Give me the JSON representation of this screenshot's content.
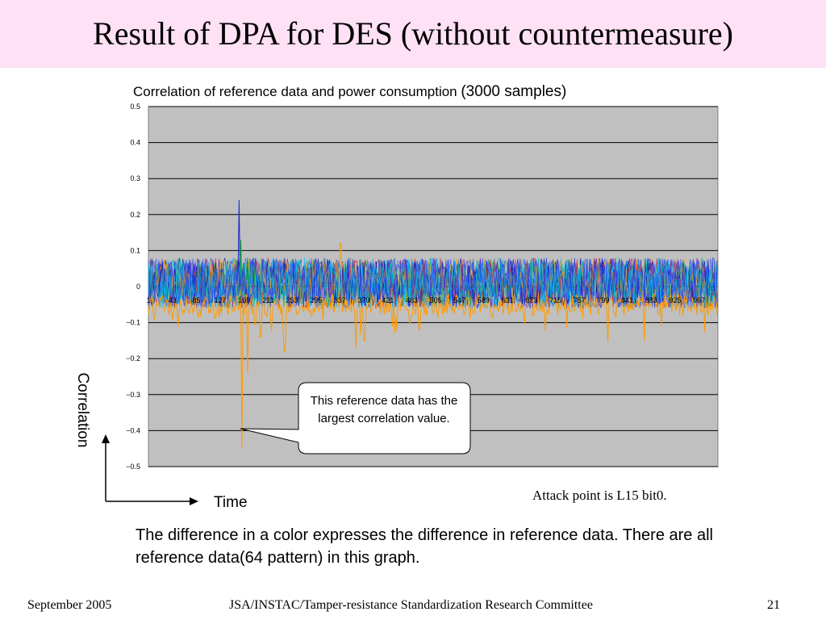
{
  "slide": {
    "title": "Result of DPA for DES (without countermeasure)",
    "chart_title_main": "Correlation of reference data and power consumption ",
    "chart_title_samples": "(3000 samples)",
    "y_axis_label": "Correlation",
    "x_axis_label": "Time",
    "callout": "This reference data has the largest correlation value.",
    "attack_point": "Attack point is L15 bit0.",
    "description": "The difference in a color expresses the difference in reference data. There are all reference data(64 pattern) in this graph.",
    "footer_left": "September 2005",
    "footer_center": "JSA/INSTAC/Tamper-resistance Standardization Research Committee",
    "footer_right": "21",
    "title_bg": "#ffe1f5",
    "plot_bg": "#c0c0c0"
  },
  "chart_data": {
    "type": "line",
    "title": "Correlation of reference data and power consumption (3000 samples)",
    "xlabel": "Time",
    "ylabel": "Correlation",
    "ylim": [
      -0.5,
      0.5
    ],
    "yticks": [
      "0.5",
      "0.4",
      "0.3",
      "0.2",
      "0.1",
      "0",
      "−0.1",
      "−0.2",
      "−0.3",
      "−0.4",
      "−0.5"
    ],
    "xticks": [
      "1",
      "43",
      "85",
      "127",
      "169",
      "211",
      "253",
      "295",
      "337",
      "379",
      "421",
      "463",
      "505",
      "547",
      "589",
      "631",
      "673",
      "715",
      "757",
      "799",
      "841",
      "883",
      "925",
      "967"
    ],
    "x_range": [
      1,
      1000
    ],
    "grid": true,
    "legend": "none",
    "series_count": 64,
    "series_colors": [
      "#ff9a00",
      "#1a2cc8",
      "#2a5bff",
      "#00b7c7",
      "#1aa02a",
      "#d81b1b",
      "#7a2aa0",
      "#4040ff",
      "#0b0bb0",
      "#00c8ff"
    ],
    "highlight": {
      "series": "largest correlation reference data",
      "peak_positive": {
        "x": 165,
        "y": 0.27
      },
      "peak_negative": {
        "x": 165,
        "y": -0.45
      },
      "secondary_dips": [
        {
          "x": 175,
          "y": -0.24
        },
        {
          "x": 198,
          "y": -0.14
        },
        {
          "x": 240,
          "y": -0.18
        },
        {
          "x": 338,
          "y": 0.12
        },
        {
          "x": 365,
          "y": -0.17
        },
        {
          "x": 380,
          "y": -0.15
        }
      ]
    },
    "noise_band": [
      -0.04,
      0.06
    ],
    "positive_spikes": [
      {
        "x": 160,
        "y": 0.24
      },
      {
        "x": 163,
        "y": 0.13
      },
      {
        "x": 175,
        "y": 0.08
      },
      {
        "x": 186,
        "y": 0.06
      }
    ]
  }
}
